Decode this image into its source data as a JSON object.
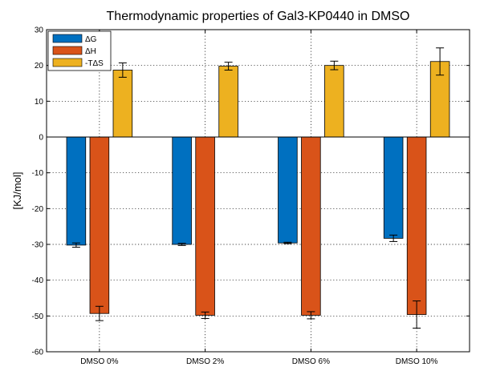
{
  "chart_data": {
    "type": "bar",
    "title": "Thermodynamic properties of Gal3-KP0440 in DMSO",
    "xlabel": "",
    "ylabel": "[KJ/mol]",
    "ylim": [
      -60,
      30
    ],
    "yticks": [
      30,
      20,
      10,
      0,
      -10,
      -20,
      -30,
      -40,
      -50,
      -60
    ],
    "grid": true,
    "legend_position": "top-left",
    "categories": [
      "DMSO 0%",
      "DMSO 2%",
      "DMSO 6%",
      "DMSO 10%"
    ],
    "series": [
      {
        "name": "ΔG",
        "color": "#0070C0",
        "values": [
          -30.2,
          -30.0,
          -29.6,
          -28.3
        ],
        "errors": [
          0.6,
          0.3,
          0.2,
          0.9
        ]
      },
      {
        "name": "ΔH",
        "color": "#D95319",
        "values": [
          -49.3,
          -49.8,
          -49.8,
          -49.6
        ],
        "errors": [
          2.0,
          0.9,
          1.0,
          3.8
        ]
      },
      {
        "name": "-TΔS",
        "color": "#EDB120",
        "values": [
          18.7,
          19.8,
          20.0,
          21.1
        ],
        "errors": [
          2.0,
          1.1,
          1.2,
          3.8
        ]
      }
    ]
  }
}
